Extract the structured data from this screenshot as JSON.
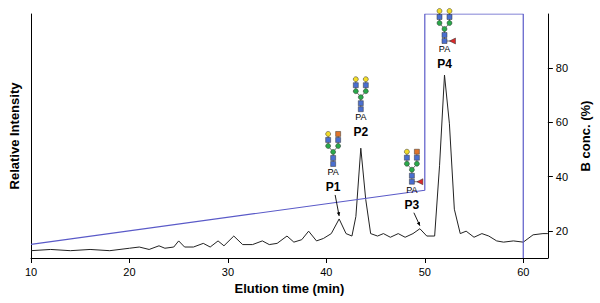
{
  "chart_data": {
    "type": "line",
    "x_label": "Elution time (min)",
    "y_label": "Relative Intensity",
    "y2_label": "B conc. (%)",
    "xlim": [
      10,
      62.5
    ],
    "xticks": [
      10,
      20,
      30,
      40,
      50,
      60
    ],
    "ylim": [
      0,
      100
    ],
    "yticks": [],
    "y2lim": [
      10,
      100
    ],
    "y2ticks": [
      20,
      40,
      60,
      80
    ],
    "grid": false,
    "series": [
      {
        "color": "#222222",
        "x": [
          10,
          12,
          14,
          16,
          18,
          20,
          21,
          22,
          23,
          23.6,
          24.5,
          25,
          25.6,
          26.5,
          27.5,
          28.2,
          29,
          29.6,
          30.6,
          31.5,
          32.5,
          33.5,
          34.2,
          35,
          36,
          36.7,
          37.5,
          38.2,
          39,
          39.7,
          40.5,
          41.3,
          42,
          42.6,
          43,
          43.5,
          44,
          44.5,
          45.2,
          45.8,
          46.5,
          47.3,
          48,
          48.8,
          49.5,
          50.2,
          51,
          51.5,
          52,
          52.5,
          53,
          53.6,
          54.2,
          55,
          55.8,
          56.5,
          57.3,
          58,
          59,
          60,
          61,
          62,
          62.5
        ],
        "values": [
          3,
          3.5,
          3,
          3.5,
          3,
          4,
          4.5,
          3.5,
          5,
          4,
          4.5,
          7,
          4.5,
          4.5,
          6,
          4.5,
          7,
          5,
          9,
          5.5,
          5.5,
          7,
          5.5,
          6,
          9,
          6.5,
          7.5,
          11,
          7,
          8,
          10,
          16,
          10,
          9,
          17,
          45,
          24,
          10,
          9,
          10,
          8.5,
          10,
          8.5,
          10,
          12,
          9,
          9,
          38,
          75,
          55,
          20,
          10,
          11,
          8.5,
          10,
          9,
          7,
          6.5,
          7,
          6.5,
          9.5,
          10,
          10
        ]
      },
      {
        "color": "#5a5ac8",
        "axis": "y2",
        "x": [
          10,
          50,
          50,
          60,
          60
        ],
        "values": [
          15,
          35,
          100,
          100,
          10
        ]
      }
    ],
    "annotations": [
      {
        "text": "P1",
        "x": 41.3,
        "label": "PA"
      },
      {
        "text": "P2",
        "x": 43.5,
        "label": "PA"
      },
      {
        "text": "P3",
        "x": 49.5,
        "label": "PA"
      },
      {
        "text": "P4",
        "x": 52,
        "label": "PA"
      }
    ]
  }
}
